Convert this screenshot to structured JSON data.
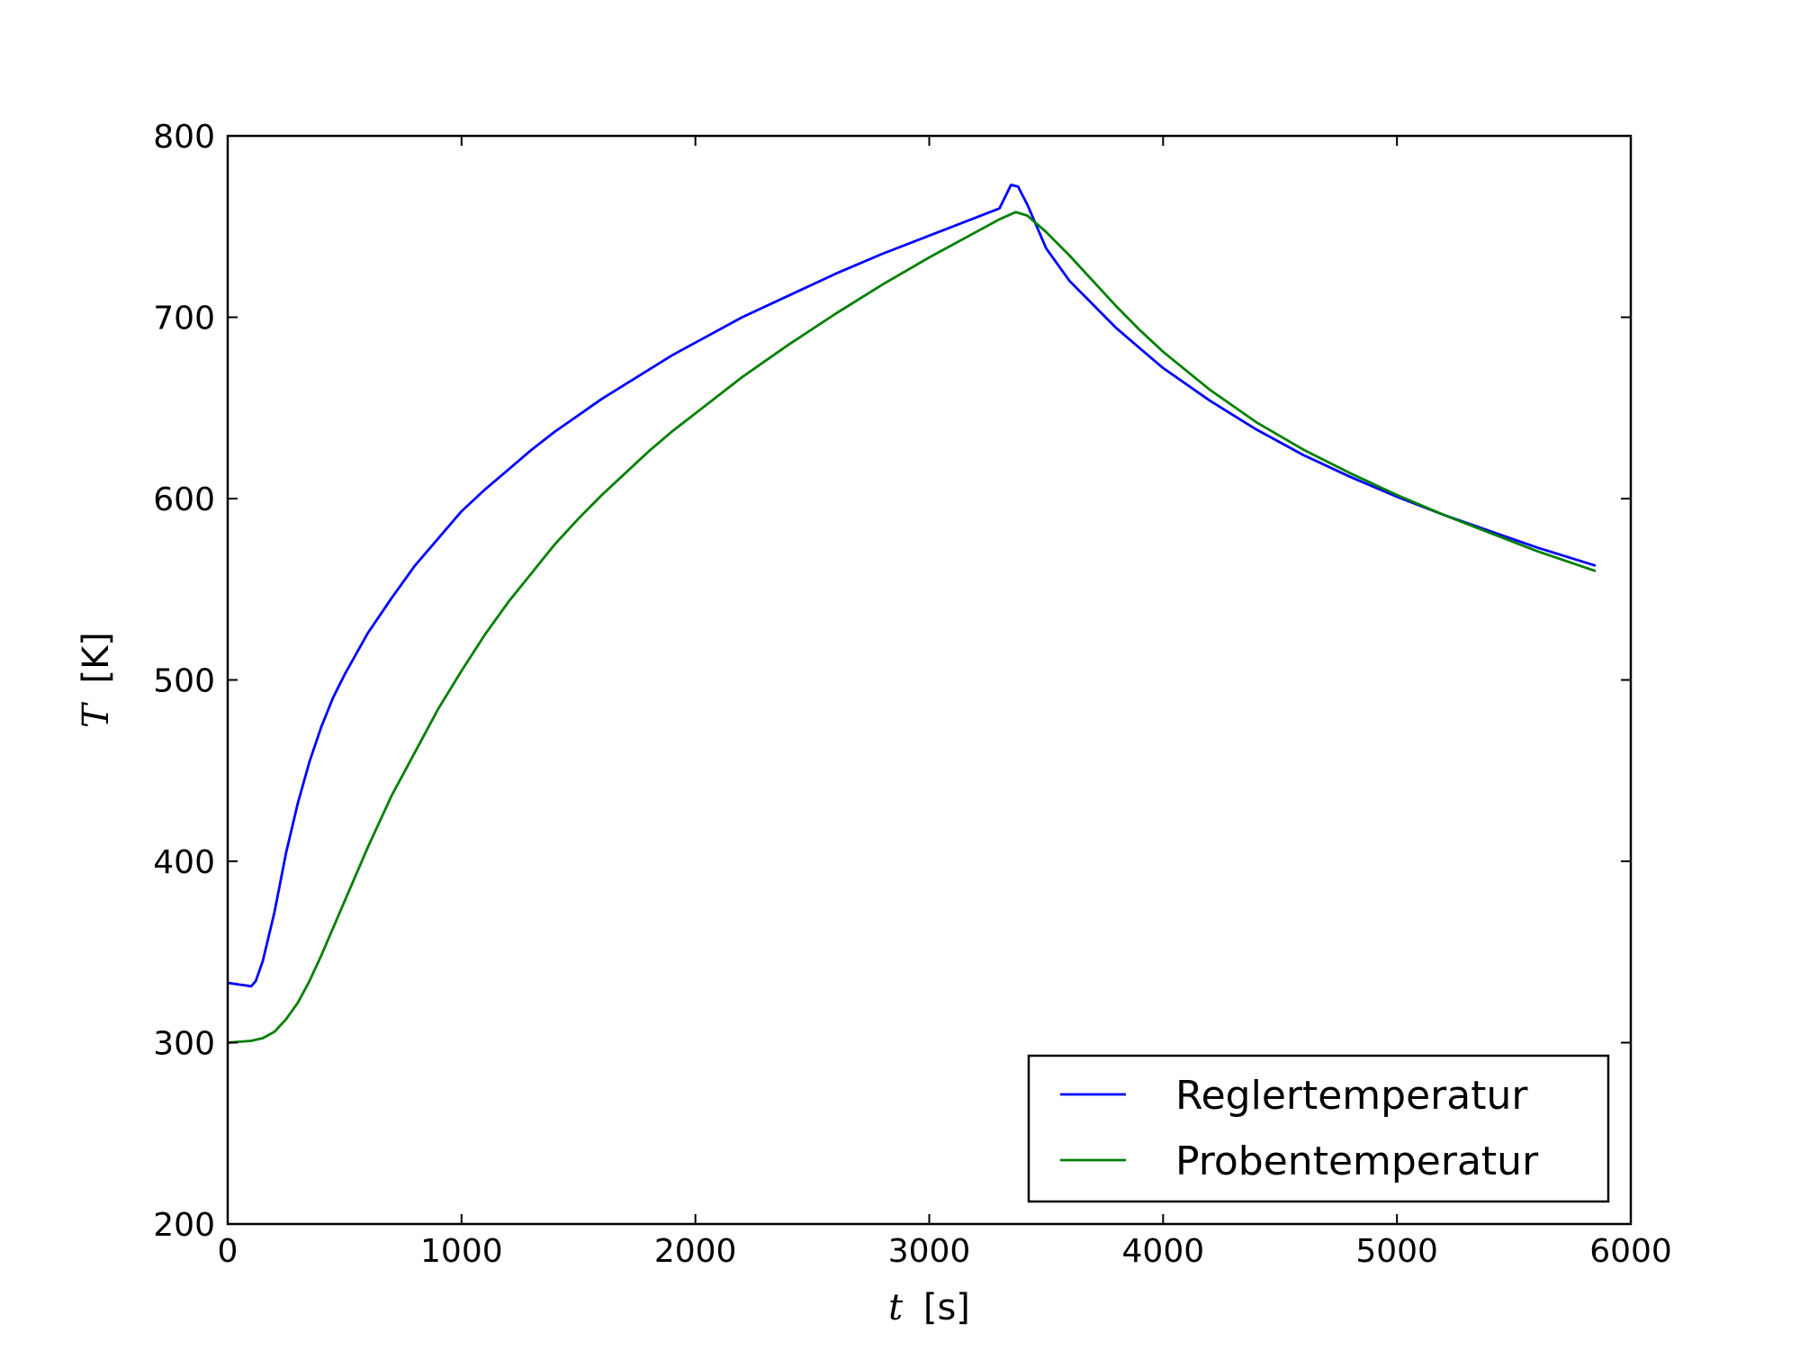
{
  "chart_data": {
    "type": "line",
    "xlabel_var": "t",
    "xlabel_unit": "[s]",
    "ylabel_var": "T",
    "ylabel_unit": "[K]",
    "xlim": [
      0,
      6000
    ],
    "ylim": [
      200,
      800
    ],
    "xticks": [
      0,
      1000,
      2000,
      3000,
      4000,
      5000,
      6000
    ],
    "yticks": [
      200,
      300,
      400,
      500,
      600,
      700,
      800
    ],
    "grid": false,
    "legend_position": "bottom-right",
    "series": [
      {
        "name": "Reglertemperatur",
        "color": "#0000ff",
        "points": [
          [
            0,
            333
          ],
          [
            50,
            332
          ],
          [
            80,
            331.5
          ],
          [
            100,
            331
          ],
          [
            120,
            334
          ],
          [
            150,
            345
          ],
          [
            200,
            372
          ],
          [
            250,
            405
          ],
          [
            300,
            432
          ],
          [
            350,
            455
          ],
          [
            400,
            474
          ],
          [
            450,
            490
          ],
          [
            500,
            503
          ],
          [
            600,
            526
          ],
          [
            700,
            545
          ],
          [
            800,
            563
          ],
          [
            900,
            578
          ],
          [
            1000,
            593
          ],
          [
            1100,
            605
          ],
          [
            1200,
            616
          ],
          [
            1300,
            627
          ],
          [
            1400,
            637
          ],
          [
            1500,
            646
          ],
          [
            1600,
            655
          ],
          [
            1700,
            663
          ],
          [
            1800,
            671
          ],
          [
            1900,
            679
          ],
          [
            2000,
            686
          ],
          [
            2200,
            700
          ],
          [
            2400,
            712
          ],
          [
            2600,
            724
          ],
          [
            2800,
            735
          ],
          [
            3000,
            745
          ],
          [
            3200,
            755
          ],
          [
            3300,
            760
          ],
          [
            3350,
            773
          ],
          [
            3380,
            772
          ],
          [
            3420,
            762
          ],
          [
            3500,
            738
          ],
          [
            3600,
            720
          ],
          [
            3700,
            707
          ],
          [
            3800,
            694
          ],
          [
            3900,
            683
          ],
          [
            4000,
            672
          ],
          [
            4200,
            654
          ],
          [
            4400,
            638
          ],
          [
            4600,
            624
          ],
          [
            4800,
            612
          ],
          [
            5000,
            601
          ],
          [
            5200,
            591
          ],
          [
            5400,
            582
          ],
          [
            5600,
            573
          ],
          [
            5850,
            563
          ]
        ]
      },
      {
        "name": "Probentemperatur",
        "color": "#008000",
        "points": [
          [
            0,
            300
          ],
          [
            50,
            300.5
          ],
          [
            100,
            301
          ],
          [
            150,
            302.5
          ],
          [
            200,
            306
          ],
          [
            250,
            313
          ],
          [
            300,
            322
          ],
          [
            350,
            334
          ],
          [
            400,
            348
          ],
          [
            500,
            378
          ],
          [
            600,
            408
          ],
          [
            700,
            436
          ],
          [
            800,
            460
          ],
          [
            900,
            484
          ],
          [
            1000,
            505
          ],
          [
            1100,
            525
          ],
          [
            1200,
            543
          ],
          [
            1300,
            559
          ],
          [
            1400,
            575
          ],
          [
            1500,
            589
          ],
          [
            1600,
            602
          ],
          [
            1700,
            614
          ],
          [
            1800,
            626
          ],
          [
            1900,
            637
          ],
          [
            2000,
            647
          ],
          [
            2200,
            667
          ],
          [
            2400,
            685
          ],
          [
            2600,
            702
          ],
          [
            2800,
            718
          ],
          [
            3000,
            733
          ],
          [
            3200,
            747
          ],
          [
            3300,
            754
          ],
          [
            3370,
            758
          ],
          [
            3420,
            756
          ],
          [
            3500,
            747
          ],
          [
            3600,
            734
          ],
          [
            3700,
            720
          ],
          [
            3800,
            706
          ],
          [
            3900,
            693
          ],
          [
            4000,
            681
          ],
          [
            4200,
            660
          ],
          [
            4400,
            642
          ],
          [
            4600,
            627
          ],
          [
            4800,
            614
          ],
          [
            5000,
            602
          ],
          [
            5200,
            591
          ],
          [
            5400,
            581
          ],
          [
            5600,
            571
          ],
          [
            5850,
            560
          ]
        ]
      }
    ]
  }
}
